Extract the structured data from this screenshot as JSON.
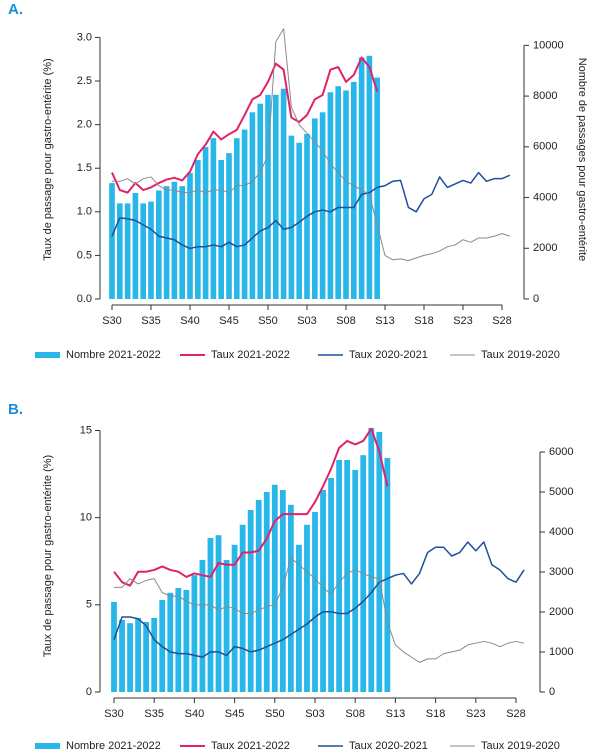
{
  "chart_data": [
    {
      "type": "combo",
      "label": "A.",
      "y_label": "Taux de passage pour gastro-entérite (%)",
      "y2_label": "Nombre de passages pour gastro-entérite",
      "categories": [
        "S30",
        null,
        null,
        null,
        null,
        "S35",
        null,
        null,
        null,
        null,
        "S40",
        null,
        null,
        null,
        null,
        "S45",
        null,
        null,
        null,
        null,
        "S50",
        null,
        null,
        null,
        null,
        "S03",
        null,
        null,
        null,
        null,
        "S08",
        null,
        null,
        null,
        null,
        "S13",
        null,
        null,
        null,
        null,
        "S18",
        null,
        null,
        null,
        null,
        "S23",
        null,
        null,
        null,
        null,
        "S28",
        null
      ],
      "ylim": [
        0,
        3.2
      ],
      "yticks": [
        {
          "value": 0,
          "label": "0.0"
        },
        0.5,
        {
          "value": 1,
          "label": "1.0"
        },
        1.5,
        {
          "value": 2,
          "label": "2.0"
        },
        2.5,
        {
          "value": 3,
          "label": "3.0"
        }
      ],
      "y2lim": [
        0,
        11000
      ],
      "y2ticks": [
        0,
        2000,
        4000,
        6000,
        8000,
        10000
      ],
      "series": [
        {
          "name": "Nombre 2021-2022",
          "type": "bar",
          "axis": "y2",
          "color": "#29b6e8",
          "values": [
            4570,
            3770,
            3770,
            4180,
            3770,
            3840,
            4280,
            4450,
            4620,
            4450,
            4970,
            5480,
            5990,
            6340,
            5480,
            5750,
            6340,
            6680,
            7360,
            7700,
            8050,
            8050,
            8290,
            6440,
            6160,
            6510,
            7120,
            7360,
            8150,
            8390,
            8220,
            8560,
            9520,
            9590,
            8730,
            null,
            null,
            null,
            null,
            null,
            null,
            null,
            null,
            null,
            null,
            null,
            null,
            null,
            null,
            null,
            null,
            null
          ]
        },
        {
          "name": "Taux 2021-2022",
          "type": "line",
          "color": "#e0226b",
          "width": 2,
          "values": [
            1.45,
            1.25,
            1.22,
            1.33,
            1.25,
            1.28,
            1.33,
            1.37,
            1.39,
            1.36,
            1.46,
            1.66,
            1.77,
            1.92,
            1.83,
            1.89,
            1.94,
            2.11,
            2.29,
            2.34,
            2.49,
            2.7,
            2.63,
            2.08,
            2.03,
            2.11,
            2.29,
            2.34,
            2.63,
            2.66,
            2.49,
            2.57,
            2.77,
            2.66,
            2.38,
            null,
            null,
            null,
            null,
            null,
            null,
            null,
            null,
            null,
            null,
            null,
            null,
            null,
            null,
            null,
            null,
            null
          ]
        },
        {
          "name": "Taux 2020-2021",
          "type": "line",
          "color": "#1f4e9c",
          "width": 1.5,
          "values": [
            0.72,
            0.93,
            0.92,
            0.9,
            0.85,
            0.8,
            0.72,
            0.7,
            0.68,
            0.62,
            0.58,
            0.6,
            0.6,
            0.62,
            0.6,
            0.65,
            0.6,
            0.62,
            0.7,
            0.78,
            0.82,
            0.9,
            0.8,
            0.82,
            0.88,
            0.95,
            1.0,
            1.02,
            1.0,
            1.05,
            1.05,
            1.05,
            1.2,
            1.22,
            1.28,
            1.3,
            1.35,
            1.36,
            1.05,
            1.0,
            1.15,
            1.2,
            1.4,
            1.28,
            1.32,
            1.36,
            1.33,
            1.45,
            1.35,
            1.38,
            1.38,
            1.42
          ]
        },
        {
          "name": "Taux 2019-2020",
          "type": "line",
          "color": "#8a8a8a",
          "width": 1,
          "values": [
            1.35,
            1.35,
            1.38,
            1.32,
            1.38,
            1.4,
            1.3,
            1.25,
            1.25,
            1.22,
            1.22,
            1.25,
            1.22,
            1.25,
            1.25,
            1.22,
            1.3,
            1.3,
            1.35,
            1.45,
            1.65,
            2.95,
            3.1,
            2.2,
            2.0,
            1.9,
            1.8,
            1.7,
            1.55,
            1.45,
            1.35,
            1.3,
            1.25,
            1.2,
            0.85,
            0.5,
            0.45,
            0.46,
            0.44,
            0.47,
            0.5,
            0.52,
            0.55,
            0.6,
            0.62,
            0.68,
            0.65,
            0.7,
            0.7,
            0.72,
            0.75,
            0.72
          ]
        }
      ]
    },
    {
      "type": "combo",
      "label": "B.",
      "y_label": "Taux de passage pour gastro-entérite (%)",
      "categories": [
        "S30",
        null,
        null,
        null,
        null,
        "S35",
        null,
        null,
        null,
        null,
        "S40",
        null,
        null,
        null,
        null,
        "S45",
        null,
        null,
        null,
        null,
        "S50",
        null,
        null,
        null,
        null,
        "S03",
        null,
        null,
        null,
        null,
        "S08",
        null,
        null,
        null,
        null,
        "S13",
        null,
        null,
        null,
        null,
        "S18",
        null,
        null,
        null,
        null,
        "S23",
        null,
        null,
        null,
        null,
        "S28",
        null
      ],
      "ylim": [
        0,
        15.6
      ],
      "yticks": [
        0,
        5,
        10,
        15
      ],
      "y2lim": [
        0,
        6800
      ],
      "y2ticks": [
        0,
        1000,
        2000,
        3000,
        4000,
        5000,
        6000
      ],
      "series": [
        {
          "name": "Nombre 2021-2022",
          "type": "bar",
          "axis": "y2",
          "color": "#29b6e8",
          "values": [
            2250,
            1800,
            1720,
            1850,
            1750,
            1850,
            2300,
            2480,
            2600,
            2550,
            2920,
            3300,
            3850,
            3920,
            3300,
            3680,
            4180,
            4550,
            4800,
            5000,
            5180,
            5050,
            4680,
            3680,
            4180,
            4500,
            5050,
            5350,
            5800,
            5800,
            5550,
            5920,
            6600,
            6500,
            5850,
            null,
            null,
            null,
            null,
            null,
            null,
            null,
            null,
            null,
            null,
            null,
            null,
            null,
            null,
            null,
            null,
            null
          ]
        },
        {
          "name": "Taux 2021-2022",
          "type": "line",
          "color": "#e0226b",
          "width": 2,
          "values": [
            6.9,
            6.3,
            6.1,
            6.9,
            6.9,
            7.0,
            7.2,
            7.0,
            6.9,
            6.6,
            6.8,
            6.7,
            6.6,
            7.4,
            7.3,
            7.3,
            8.0,
            8.0,
            8.1,
            8.8,
            9.8,
            10.2,
            10.2,
            10.2,
            10.2,
            10.9,
            11.8,
            12.8,
            14.0,
            14.4,
            14.2,
            14.4,
            15.1,
            13.8,
            11.8,
            null,
            null,
            null,
            null,
            null,
            null,
            null,
            null,
            null,
            null,
            null,
            null,
            null,
            null,
            null,
            null,
            null
          ]
        },
        {
          "name": "Taux 2020-2021",
          "type": "line",
          "color": "#1f4e9c",
          "width": 1.5,
          "values": [
            3.0,
            4.3,
            4.3,
            4.2,
            3.8,
            3.0,
            2.6,
            2.3,
            2.2,
            2.2,
            2.1,
            2.0,
            2.3,
            2.3,
            2.1,
            2.6,
            2.5,
            2.3,
            2.4,
            2.6,
            2.8,
            3.0,
            3.3,
            3.6,
            3.9,
            4.3,
            4.6,
            4.6,
            4.5,
            4.5,
            4.8,
            5.2,
            5.7,
            6.3,
            6.5,
            6.7,
            6.8,
            6.2,
            6.8,
            8.0,
            8.3,
            8.3,
            7.8,
            8.0,
            8.6,
            8.1,
            8.6,
            7.3,
            7.0,
            6.5,
            6.3,
            7.0
          ]
        },
        {
          "name": "Taux 2019-2020",
          "type": "line",
          "color": "#8a8a8a",
          "width": 1,
          "values": [
            6.0,
            6.0,
            6.5,
            6.2,
            6.4,
            6.5,
            5.7,
            5.5,
            5.5,
            5.2,
            5.0,
            5.0,
            5.0,
            4.7,
            4.9,
            4.8,
            4.5,
            4.5,
            4.7,
            4.9,
            5.0,
            6.0,
            7.7,
            7.3,
            6.9,
            6.5,
            6.0,
            5.6,
            6.3,
            6.8,
            7.0,
            6.8,
            6.6,
            6.5,
            4.0,
            2.7,
            2.3,
            2.0,
            1.7,
            1.9,
            1.9,
            2.2,
            2.3,
            2.4,
            2.7,
            2.8,
            2.9,
            2.8,
            2.6,
            2.8,
            2.9,
            2.8
          ]
        }
      ]
    }
  ]
}
